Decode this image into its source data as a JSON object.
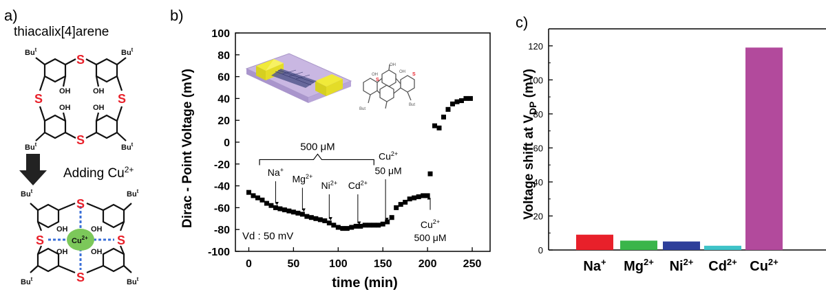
{
  "panel_a": {
    "label": "a)",
    "title": "thiacalix[4]arene",
    "adding_text": "Adding Cu",
    "adding_sup": "2+",
    "but_label": "Bu",
    "but_sup": "t",
    "s_label": "S",
    "oh_label": "OH",
    "cu_label": "Cu",
    "cu_sup": "2+",
    "colors": {
      "sulfur": "#e8202a",
      "bond": "#111111",
      "coord_dash": "#3a6fd8",
      "cu_ball": "#7cc85a"
    }
  },
  "chart_data": [
    {
      "type": "scatter",
      "panel_label": "b)",
      "xlabel": "time (min)",
      "ylabel": "Dirac - Point Voltage (mV)",
      "xlim": [
        -15,
        270
      ],
      "ylim": [
        -100,
        100
      ],
      "xticks": [
        0,
        50,
        100,
        150,
        200,
        250
      ],
      "yticks": [
        -100,
        -80,
        -60,
        -40,
        -20,
        0,
        20,
        40,
        60,
        80,
        100
      ],
      "x": [
        0,
        5,
        10,
        15,
        20,
        25,
        30,
        35,
        40,
        45,
        50,
        55,
        60,
        65,
        70,
        75,
        80,
        85,
        90,
        95,
        100,
        105,
        110,
        115,
        120,
        125,
        130,
        135,
        140,
        145,
        150,
        155,
        160,
        165,
        170,
        175,
        180,
        185,
        190,
        195,
        200,
        203,
        208,
        213,
        218,
        223,
        228,
        233,
        238,
        243,
        248
      ],
      "y": [
        -46,
        -49,
        -51,
        -53,
        -56,
        -58,
        -60,
        -61,
        -62,
        -63,
        -64,
        -65,
        -66,
        -68,
        -69,
        -70,
        -71,
        -72,
        -74,
        -76,
        -78,
        -79,
        -79,
        -78,
        -77,
        -77,
        -76,
        -76,
        -76,
        -76,
        -75,
        -73,
        -69,
        -60,
        -57,
        -55,
        -52,
        -51,
        -50,
        -49,
        -49,
        -29,
        15,
        13,
        23,
        30,
        35,
        37,
        38,
        40,
        40
      ],
      "marker_color": "#000000",
      "annotations": {
        "bracket_label": "500 μM",
        "ions": [
          {
            "text": "Na",
            "sup": "+",
            "x": 30
          },
          {
            "text": "Mg",
            "sup": "2+",
            "x": 60
          },
          {
            "text": "Ni",
            "sup": "2+",
            "x": 90
          },
          {
            "text": "Cd",
            "sup": "2+",
            "x": 122
          }
        ],
        "cu50": {
          "text": "Cu",
          "sup": "2+",
          "conc": "50 μM",
          "x": 153
        },
        "cu500": {
          "text": "Cu",
          "sup": "2+",
          "conc": "500 μM",
          "x": 203
        },
        "vd_label": "Vd : 50 mV"
      }
    },
    {
      "type": "bar",
      "panel_label": "c)",
      "ylabel": "Voltage shift at V",
      "ylabel_sub": "DP",
      "ylabel_unit": " (mV)",
      "categories": [
        {
          "text": "Na",
          "sup": "+"
        },
        {
          "text": "Mg",
          "sup": "2+"
        },
        {
          "text": "Ni",
          "sup": "2+"
        },
        {
          "text": "Cd",
          "sup": "2+"
        },
        {
          "text": "Cu",
          "sup": "2+"
        }
      ],
      "values": [
        9,
        5.5,
        5,
        2.5,
        119
      ],
      "colors": [
        "#e8202a",
        "#3ab54a",
        "#2e3f9a",
        "#3ec3c8",
        "#b24a9c"
      ],
      "ylim": [
        0,
        130
      ],
      "yticks": [
        0,
        20,
        40,
        60,
        80,
        100,
        120
      ]
    }
  ]
}
